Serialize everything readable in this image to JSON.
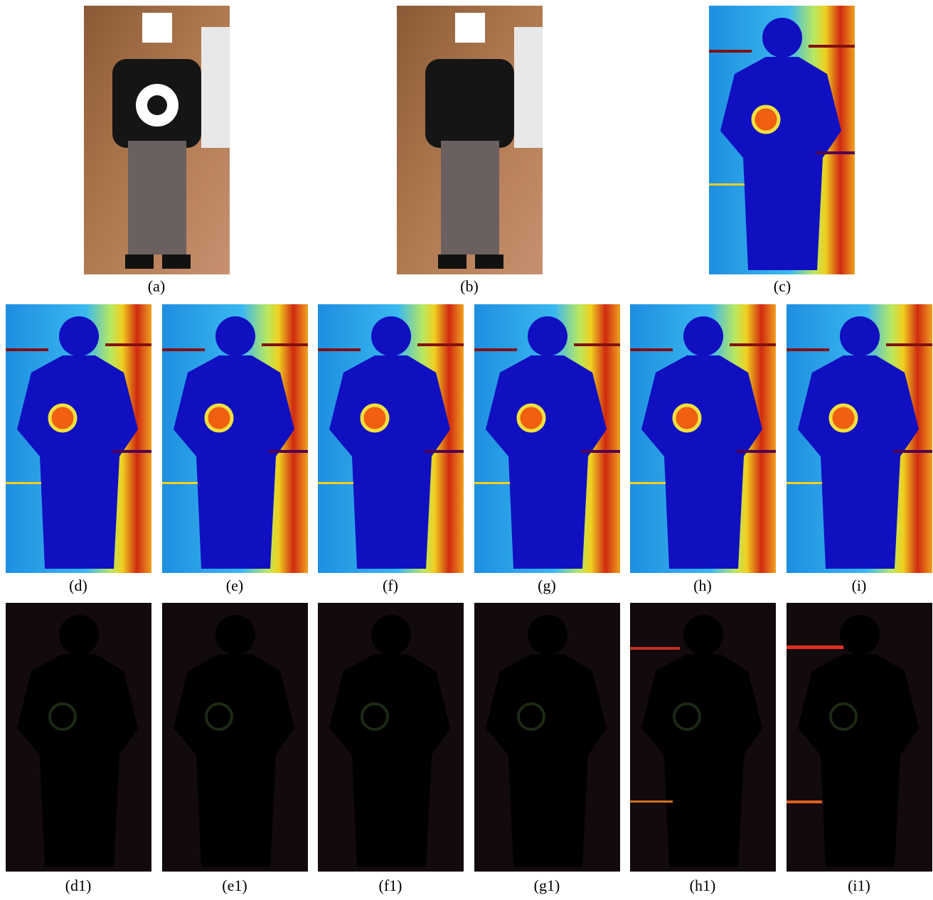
{
  "figure": {
    "row1": [
      "(a)",
      "(b)",
      "(c)"
    ],
    "row2": [
      "(d)",
      "(e)",
      "(f)",
      "(g)",
      "(h)",
      "(i)"
    ],
    "row3": [
      "(d1)",
      "(e1)",
      "(f1)",
      "(g1)",
      "(h1)",
      "(i1)"
    ]
  }
}
